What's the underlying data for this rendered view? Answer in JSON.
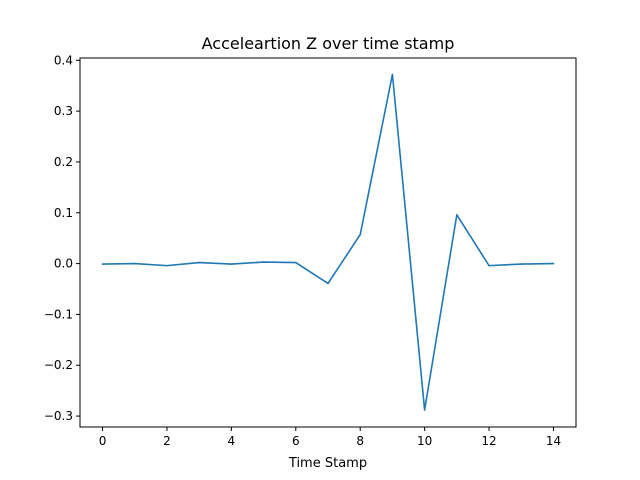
{
  "chart_data": {
    "type": "line",
    "title": "Acceleartion Z over time stamp",
    "xlabel": "Time Stamp",
    "ylabel": "",
    "xlim": [
      -0.7,
      14.7
    ],
    "ylim": [
      -0.3215,
      0.4045
    ],
    "xticks": [
      0,
      2,
      4,
      6,
      8,
      10,
      12,
      14
    ],
    "xtick_labels": [
      "0",
      "2",
      "4",
      "6",
      "8",
      "10",
      "12",
      "14"
    ],
    "yticks": [
      -0.3,
      -0.2,
      -0.1,
      0.0,
      0.1,
      0.2,
      0.3,
      0.4
    ],
    "ytick_labels": [
      "−0.3",
      "−0.2",
      "−0.1",
      "0.0",
      "0.1",
      "0.2",
      "0.3",
      "0.4"
    ],
    "grid": false,
    "series": [
      {
        "color": "#1f77b4",
        "x": [
          0,
          1,
          2,
          3,
          4,
          5,
          6,
          7,
          8,
          9,
          10,
          11,
          12,
          13,
          14
        ],
        "y": [
          -0.001,
          0.0,
          -0.004,
          0.002,
          -0.001,
          0.003,
          0.002,
          -0.039,
          0.057,
          0.372,
          -0.288,
          0.096,
          -0.004,
          -0.001,
          0.0
        ]
      }
    ]
  }
}
